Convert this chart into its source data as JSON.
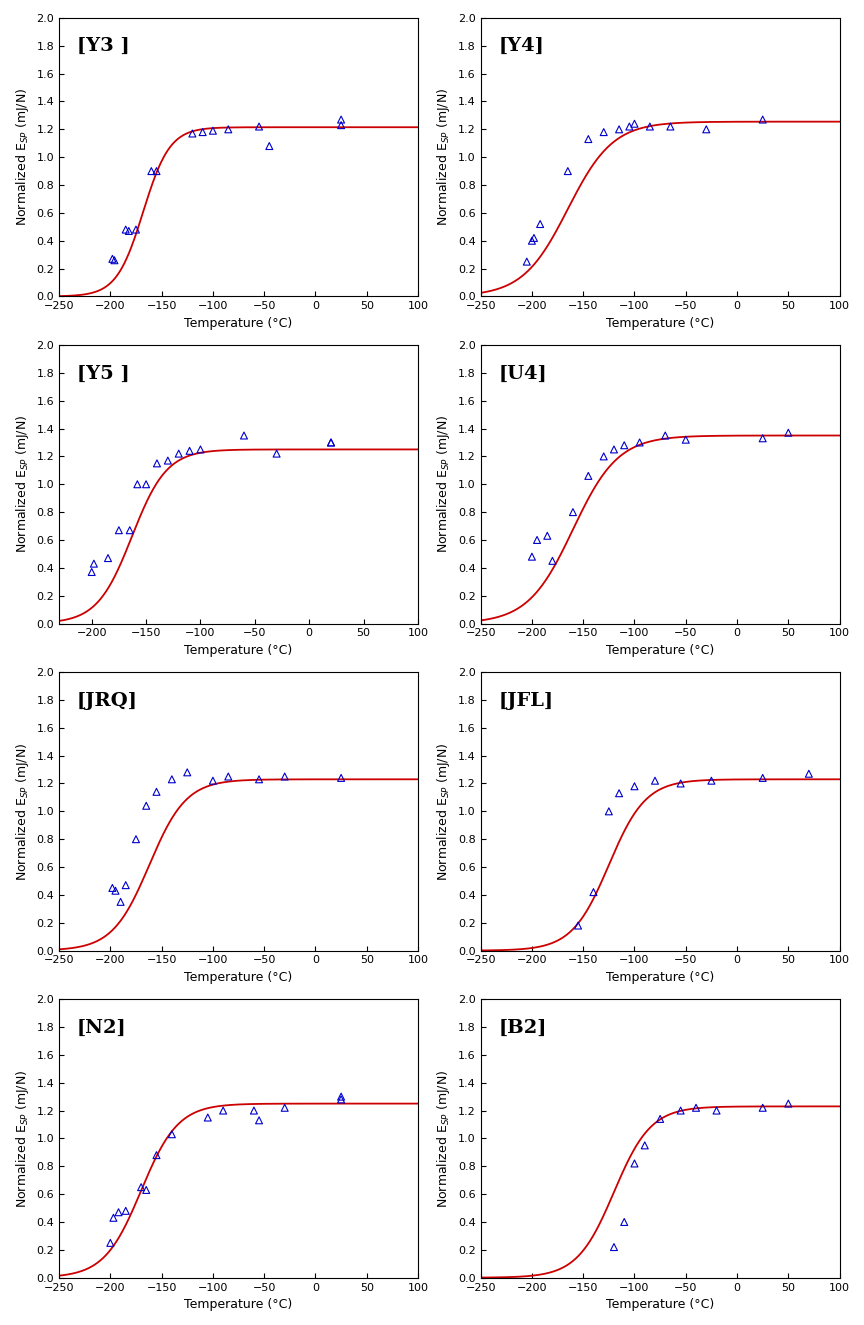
{
  "panels": [
    {
      "label": "[Y3 ]",
      "xlim": [
        -250,
        100
      ],
      "ylim": [
        0.0,
        2.0
      ],
      "xticks": [
        -250,
        -200,
        -150,
        -100,
        -50,
        0,
        50,
        100
      ],
      "yticks": [
        0.0,
        0.2,
        0.4,
        0.6,
        0.8,
        1.0,
        1.2,
        1.4,
        1.6,
        1.8,
        2.0
      ],
      "fit_params": {
        "A": 1.215,
        "T0": -168,
        "C": 13
      },
      "scatter_x": [
        -198,
        -196,
        -185,
        -182,
        -175,
        -160,
        -155,
        -120,
        -110,
        -100,
        -85,
        -55,
        -45,
        25,
        25
      ],
      "scatter_y": [
        0.27,
        0.26,
        0.48,
        0.47,
        0.48,
        0.9,
        0.9,
        1.17,
        1.18,
        1.19,
        1.2,
        1.22,
        1.08,
        1.27,
        1.23
      ]
    },
    {
      "label": "[Y4]",
      "xlim": [
        -250,
        100
      ],
      "ylim": [
        0.0,
        2.0
      ],
      "xticks": [
        -250,
        -200,
        -150,
        -100,
        -50,
        0,
        50,
        100
      ],
      "yticks": [
        0.0,
        0.2,
        0.4,
        0.6,
        0.8,
        1.0,
        1.2,
        1.4,
        1.6,
        1.8,
        2.0
      ],
      "fit_params": {
        "A": 1.255,
        "T0": -165,
        "C": 22
      },
      "scatter_x": [
        -205,
        -200,
        -198,
        -192,
        -165,
        -145,
        -130,
        -115,
        -105,
        -100,
        -85,
        -65,
        -30,
        25
      ],
      "scatter_y": [
        0.25,
        0.4,
        0.42,
        0.52,
        0.9,
        1.13,
        1.18,
        1.2,
        1.22,
        1.24,
        1.22,
        1.22,
        1.2,
        1.27
      ]
    },
    {
      "label": "[Y5 ]",
      "xlim": [
        -230,
        100
      ],
      "ylim": [
        0.0,
        2.0
      ],
      "xticks": [
        -200,
        -150,
        -100,
        -50,
        0,
        50,
        100
      ],
      "yticks": [
        0.0,
        0.2,
        0.4,
        0.6,
        0.8,
        1.0,
        1.2,
        1.4,
        1.6,
        1.8,
        2.0
      ],
      "fit_params": {
        "A": 1.25,
        "T0": -163,
        "C": 16
      },
      "scatter_x": [
        -200,
        -198,
        -185,
        -175,
        -165,
        -158,
        -150,
        -140,
        -130,
        -120,
        -110,
        -100,
        -60,
        -30,
        20,
        20
      ],
      "scatter_y": [
        0.37,
        0.43,
        0.47,
        0.67,
        0.67,
        1.0,
        1.0,
        1.15,
        1.17,
        1.22,
        1.24,
        1.25,
        1.35,
        1.22,
        1.3,
        1.3
      ]
    },
    {
      "label": "[U4]",
      "xlim": [
        -250,
        100
      ],
      "ylim": [
        0.0,
        2.0
      ],
      "xticks": [
        -250,
        -200,
        -150,
        -100,
        -50,
        0,
        50,
        100
      ],
      "yticks": [
        0.0,
        0.2,
        0.4,
        0.6,
        0.8,
        1.0,
        1.2,
        1.4,
        1.6,
        1.8,
        2.0
      ],
      "fit_params": {
        "A": 1.35,
        "T0": -160,
        "C": 22
      },
      "scatter_x": [
        -200,
        -195,
        -185,
        -180,
        -160,
        -145,
        -130,
        -120,
        -110,
        -95,
        -70,
        -50,
        25,
        50
      ],
      "scatter_y": [
        0.48,
        0.6,
        0.63,
        0.45,
        0.8,
        1.06,
        1.2,
        1.25,
        1.28,
        1.3,
        1.35,
        1.32,
        1.33,
        1.37
      ]
    },
    {
      "label": "[JRQ]",
      "xlim": [
        -250,
        100
      ],
      "ylim": [
        0.0,
        2.0
      ],
      "xticks": [
        -250,
        -200,
        -150,
        -100,
        -50,
        0,
        50,
        100
      ],
      "yticks": [
        0.0,
        0.2,
        0.4,
        0.6,
        0.8,
        1.0,
        1.2,
        1.4,
        1.6,
        1.8,
        2.0
      ],
      "fit_params": {
        "A": 1.23,
        "T0": -162,
        "C": 18
      },
      "scatter_x": [
        -198,
        -195,
        -190,
        -185,
        -175,
        -165,
        -155,
        -140,
        -125,
        -100,
        -85,
        -55,
        -30,
        25
      ],
      "scatter_y": [
        0.45,
        0.43,
        0.35,
        0.47,
        0.8,
        1.04,
        1.14,
        1.23,
        1.28,
        1.22,
        1.25,
        1.23,
        1.25,
        1.24
      ]
    },
    {
      "label": "[JFL]",
      "xlim": [
        -250,
        100
      ],
      "ylim": [
        0.0,
        2.0
      ],
      "xticks": [
        -250,
        -200,
        -150,
        -100,
        -50,
        0,
        50,
        100
      ],
      "yticks": [
        0.0,
        0.2,
        0.4,
        0.6,
        0.8,
        1.0,
        1.2,
        1.4,
        1.6,
        1.8,
        2.0
      ],
      "fit_params": {
        "A": 1.23,
        "T0": -125,
        "C": 18
      },
      "scatter_x": [
        -155,
        -140,
        -125,
        -115,
        -100,
        -80,
        -55,
        -25,
        25,
        70
      ],
      "scatter_y": [
        0.18,
        0.42,
        1.0,
        1.13,
        1.18,
        1.22,
        1.2,
        1.22,
        1.24,
        1.27
      ]
    },
    {
      "label": "[N2]",
      "xlim": [
        -250,
        100
      ],
      "ylim": [
        0.0,
        2.0
      ],
      "xticks": [
        -250,
        -200,
        -150,
        -100,
        -50,
        0,
        50,
        100
      ],
      "yticks": [
        0.0,
        0.2,
        0.4,
        0.6,
        0.8,
        1.0,
        1.2,
        1.4,
        1.6,
        1.8,
        2.0
      ],
      "fit_params": {
        "A": 1.25,
        "T0": -170,
        "C": 18
      },
      "scatter_x": [
        -200,
        -197,
        -192,
        -185,
        -170,
        -165,
        -155,
        -140,
        -105,
        -90,
        -60,
        -55,
        -30,
        25,
        25
      ],
      "scatter_y": [
        0.25,
        0.43,
        0.47,
        0.48,
        0.65,
        0.63,
        0.88,
        1.03,
        1.15,
        1.2,
        1.2,
        1.13,
        1.22,
        1.3,
        1.28
      ]
    },
    {
      "label": "[B2]",
      "xlim": [
        -250,
        100
      ],
      "ylim": [
        0.0,
        2.0
      ],
      "xticks": [
        -250,
        -200,
        -150,
        -100,
        -50,
        0,
        50,
        100
      ],
      "yticks": [
        0.0,
        0.2,
        0.4,
        0.6,
        0.8,
        1.0,
        1.2,
        1.4,
        1.6,
        1.8,
        2.0
      ],
      "fit_params": {
        "A": 1.23,
        "T0": -120,
        "C": 18
      },
      "scatter_x": [
        -120,
        -110,
        -100,
        -90,
        -75,
        -55,
        -40,
        -20,
        25,
        50
      ],
      "scatter_y": [
        0.22,
        0.4,
        0.82,
        0.95,
        1.14,
        1.2,
        1.22,
        1.2,
        1.22,
        1.25
      ]
    }
  ],
  "line_color": "#cc0000",
  "scatter_color": "#0000cc",
  "marker": "^",
  "marker_size": 5,
  "marker_facecolor": "none",
  "ylabel": "Normalized E$_{SP}$ (mJ/N)",
  "xlabel": "Temperature (°C)",
  "label_fontsize": 9,
  "tick_fontsize": 8,
  "panel_label_fontsize": 14
}
